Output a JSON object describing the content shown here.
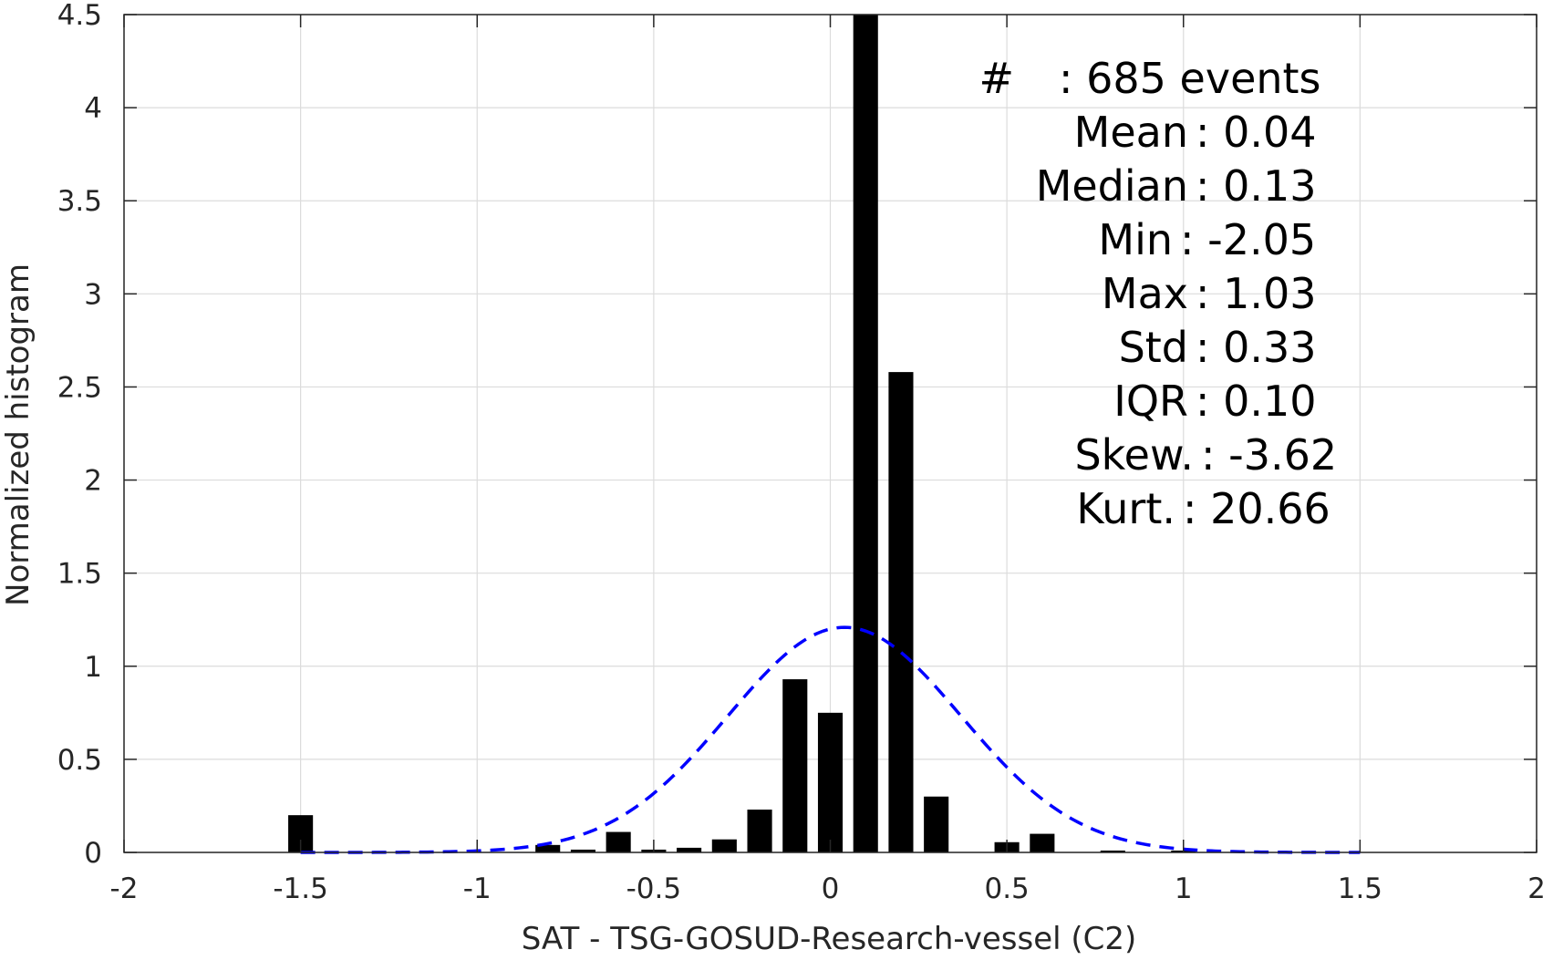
{
  "chart_data": {
    "type": "bar",
    "xlabel": "SAT - TSG-GOSUD-Research-vessel (C2)",
    "ylabel": "Normalized histogram",
    "xlim": [
      -2,
      2
    ],
    "ylim": [
      0,
      4.5
    ],
    "grid": true,
    "x_ticks": [
      -2,
      -1.5,
      -1,
      -0.5,
      0,
      0.5,
      1,
      1.5,
      2
    ],
    "x_tick_labels": [
      "-2",
      "-1.5",
      "-1",
      "-0.5",
      "0",
      "0.5",
      "1",
      "1.5",
      "2"
    ],
    "y_ticks": [
      0,
      0.5,
      1,
      1.5,
      2,
      2.5,
      3,
      3.5,
      4,
      4.5
    ],
    "y_tick_labels": [
      "0",
      "0.5",
      "1",
      "1.5",
      "2",
      "2.5",
      "3",
      "3.5",
      "4",
      "4.5"
    ],
    "bar_width": 0.07,
    "bars": {
      "x": [
        -1.5,
        -0.8,
        -0.7,
        -0.6,
        -0.5,
        -0.4,
        -0.3,
        -0.2,
        -0.1,
        0.0,
        0.1,
        0.2,
        0.3,
        0.5,
        0.6,
        0.8,
        1.0
      ],
      "values": [
        0.2,
        0.04,
        0.015,
        0.11,
        0.015,
        0.025,
        0.07,
        0.23,
        0.93,
        0.75,
        4.5,
        2.58,
        0.3,
        0.055,
        0.1,
        0.01,
        0.01
      ],
      "color": "#000000"
    },
    "fit": {
      "style": "dashed",
      "color": "#0000ff",
      "mean": 0.04,
      "std": 0.33,
      "x_range": [
        -1.5,
        1.5
      ]
    },
    "stats": [
      {
        "label": "#",
        "value": "685 events"
      },
      {
        "label": "Mean",
        "value": "0.04"
      },
      {
        "label": "Median",
        "value": "0.13"
      },
      {
        "label": "Min",
        "value": "-2.05"
      },
      {
        "label": "Max",
        "value": "1.03"
      },
      {
        "label": "Std",
        "value": "0.33"
      },
      {
        "label": "IQR",
        "value": "0.10"
      },
      {
        "label": "Skew.",
        "value": "-3.62"
      },
      {
        "label": "Kurt.",
        "value": "20.66"
      }
    ]
  }
}
